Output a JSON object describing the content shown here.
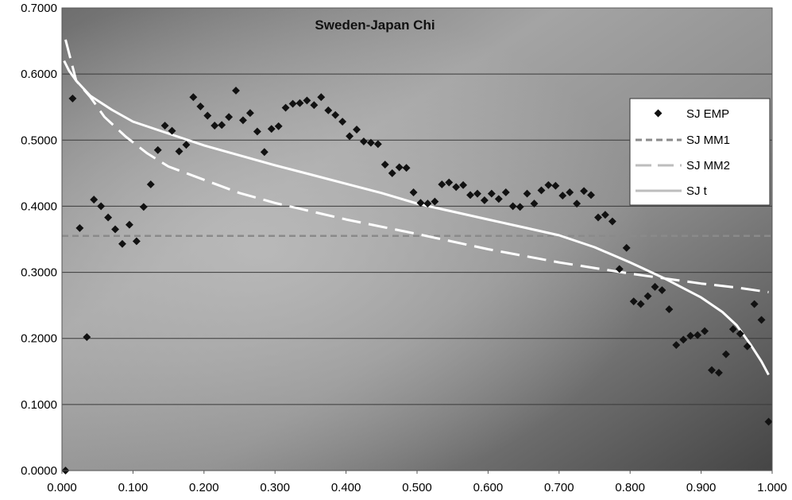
{
  "chart_data": {
    "type": "scatter",
    "title": "Sweden-Japan Chi",
    "xlabel": "",
    "ylabel": "",
    "xlim": [
      0,
      1
    ],
    "ylim": [
      0,
      0.7
    ],
    "x_ticks": [
      "0.000",
      "0.100",
      "0.200",
      "0.300",
      "0.400",
      "0.500",
      "0.600",
      "0.700",
      "0.800",
      "0.900",
      "1.000"
    ],
    "y_ticks": [
      "0.0000",
      "0.1000",
      "0.2000",
      "0.3000",
      "0.4000",
      "0.5000",
      "0.6000",
      "0.7000"
    ],
    "grid": true,
    "legend_position": "right",
    "series": [
      {
        "name": "SJ EMP",
        "kind": "scatter",
        "color": "#111111",
        "points": [
          [
            0.005,
            0.0
          ],
          [
            0.015,
            0.563
          ],
          [
            0.025,
            0.367
          ],
          [
            0.035,
            0.202
          ],
          [
            0.045,
            0.41
          ],
          [
            0.055,
            0.4
          ],
          [
            0.065,
            0.383
          ],
          [
            0.075,
            0.365
          ],
          [
            0.085,
            0.343
          ],
          [
            0.095,
            0.372
          ],
          [
            0.105,
            0.347
          ],
          [
            0.115,
            0.399
          ],
          [
            0.125,
            0.433
          ],
          [
            0.135,
            0.485
          ],
          [
            0.145,
            0.522
          ],
          [
            0.155,
            0.514
          ],
          [
            0.165,
            0.483
          ],
          [
            0.175,
            0.493
          ],
          [
            0.185,
            0.565
          ],
          [
            0.195,
            0.551
          ],
          [
            0.205,
            0.537
          ],
          [
            0.215,
            0.522
          ],
          [
            0.225,
            0.523
          ],
          [
            0.235,
            0.535
          ],
          [
            0.245,
            0.575
          ],
          [
            0.255,
            0.53
          ],
          [
            0.265,
            0.541
          ],
          [
            0.275,
            0.513
          ],
          [
            0.285,
            0.482
          ],
          [
            0.295,
            0.517
          ],
          [
            0.305,
            0.521
          ],
          [
            0.315,
            0.549
          ],
          [
            0.325,
            0.555
          ],
          [
            0.335,
            0.556
          ],
          [
            0.345,
            0.56
          ],
          [
            0.355,
            0.553
          ],
          [
            0.365,
            0.565
          ],
          [
            0.375,
            0.545
          ],
          [
            0.385,
            0.538
          ],
          [
            0.395,
            0.528
          ],
          [
            0.405,
            0.506
          ],
          [
            0.415,
            0.516
          ],
          [
            0.425,
            0.498
          ],
          [
            0.435,
            0.496
          ],
          [
            0.445,
            0.494
          ],
          [
            0.455,
            0.463
          ],
          [
            0.465,
            0.45
          ],
          [
            0.475,
            0.459
          ],
          [
            0.485,
            0.458
          ],
          [
            0.495,
            0.421
          ],
          [
            0.505,
            0.405
          ],
          [
            0.515,
            0.404
          ],
          [
            0.525,
            0.407
          ],
          [
            0.535,
            0.433
          ],
          [
            0.545,
            0.436
          ],
          [
            0.555,
            0.429
          ],
          [
            0.565,
            0.432
          ],
          [
            0.575,
            0.417
          ],
          [
            0.585,
            0.419
          ],
          [
            0.595,
            0.409
          ],
          [
            0.605,
            0.419
          ],
          [
            0.615,
            0.411
          ],
          [
            0.625,
            0.421
          ],
          [
            0.635,
            0.4
          ],
          [
            0.645,
            0.399
          ],
          [
            0.655,
            0.419
          ],
          [
            0.665,
            0.404
          ],
          [
            0.675,
            0.424
          ],
          [
            0.685,
            0.432
          ],
          [
            0.695,
            0.431
          ],
          [
            0.705,
            0.416
          ],
          [
            0.715,
            0.421
          ],
          [
            0.725,
            0.404
          ],
          [
            0.735,
            0.423
          ],
          [
            0.745,
            0.417
          ],
          [
            0.755,
            0.383
          ],
          [
            0.765,
            0.387
          ],
          [
            0.775,
            0.377
          ],
          [
            0.785,
            0.305
          ],
          [
            0.795,
            0.337
          ],
          [
            0.805,
            0.256
          ],
          [
            0.815,
            0.252
          ],
          [
            0.825,
            0.264
          ],
          [
            0.835,
            0.278
          ],
          [
            0.845,
            0.273
          ],
          [
            0.855,
            0.244
          ],
          [
            0.865,
            0.19
          ],
          [
            0.875,
            0.198
          ],
          [
            0.885,
            0.204
          ],
          [
            0.895,
            0.205
          ],
          [
            0.905,
            0.211
          ],
          [
            0.915,
            0.152
          ],
          [
            0.925,
            0.148
          ],
          [
            0.935,
            0.176
          ],
          [
            0.945,
            0.214
          ],
          [
            0.955,
            0.207
          ],
          [
            0.965,
            0.188
          ],
          [
            0.975,
            0.252
          ],
          [
            0.985,
            0.228
          ],
          [
            0.995,
            0.074
          ]
        ]
      },
      {
        "name": "SJ MM1",
        "kind": "line",
        "dash": "short",
        "color": "#8a8a8a",
        "points": [
          [
            0.0,
            0.355
          ],
          [
            1.0,
            0.355
          ]
        ]
      },
      {
        "name": "SJ MM2",
        "kind": "line",
        "dash": "long",
        "color": "#ffffff",
        "points": [
          [
            0.005,
            0.652
          ],
          [
            0.02,
            0.59
          ],
          [
            0.04,
            0.565
          ],
          [
            0.06,
            0.535
          ],
          [
            0.09,
            0.505
          ],
          [
            0.12,
            0.48
          ],
          [
            0.15,
            0.46
          ],
          [
            0.2,
            0.44
          ],
          [
            0.25,
            0.42
          ],
          [
            0.3,
            0.405
          ],
          [
            0.4,
            0.38
          ],
          [
            0.5,
            0.358
          ],
          [
            0.6,
            0.335
          ],
          [
            0.7,
            0.315
          ],
          [
            0.8,
            0.298
          ],
          [
            0.9,
            0.283
          ],
          [
            0.95,
            0.277
          ],
          [
            0.995,
            0.27
          ]
        ]
      },
      {
        "name": "SJ t",
        "kind": "line",
        "dash": "solid",
        "color": "#ffffff",
        "points": [
          [
            0.003,
            0.62
          ],
          [
            0.01,
            0.605
          ],
          [
            0.02,
            0.59
          ],
          [
            0.04,
            0.567
          ],
          [
            0.07,
            0.546
          ],
          [
            0.1,
            0.528
          ],
          [
            0.15,
            0.51
          ],
          [
            0.2,
            0.492
          ],
          [
            0.25,
            0.477
          ],
          [
            0.3,
            0.462
          ],
          [
            0.35,
            0.448
          ],
          [
            0.4,
            0.434
          ],
          [
            0.45,
            0.42
          ],
          [
            0.5,
            0.404
          ],
          [
            0.55,
            0.392
          ],
          [
            0.6,
            0.38
          ],
          [
            0.65,
            0.368
          ],
          [
            0.7,
            0.356
          ],
          [
            0.75,
            0.338
          ],
          [
            0.8,
            0.315
          ],
          [
            0.85,
            0.29
          ],
          [
            0.9,
            0.262
          ],
          [
            0.93,
            0.24
          ],
          [
            0.95,
            0.22
          ],
          [
            0.97,
            0.19
          ],
          [
            0.985,
            0.165
          ],
          [
            0.995,
            0.145
          ]
        ]
      }
    ]
  }
}
